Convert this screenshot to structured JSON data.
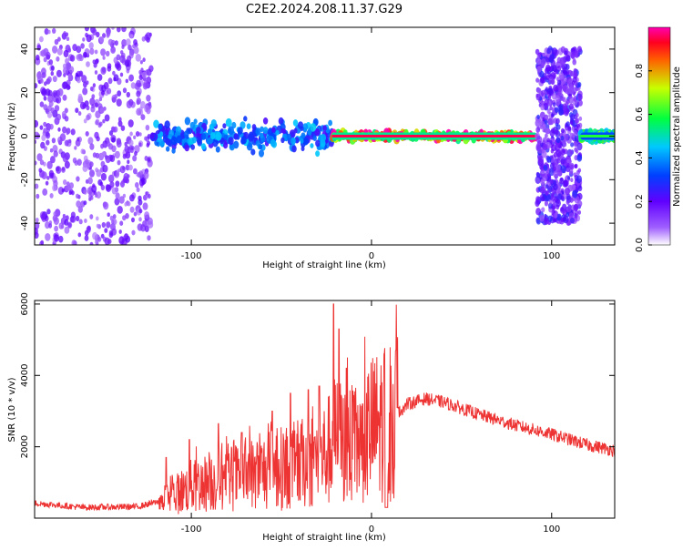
{
  "title": "C2E2.2024.208.11.37.G29",
  "chart_data": [
    {
      "type": "heatmap",
      "xlabel": "Height of straight line (km)",
      "ylabel": "Frequency (Hz)",
      "xlim": [
        -187,
        135
      ],
      "ylim": [
        -50,
        50
      ],
      "xticks": [
        -100,
        0,
        100
      ],
      "yticks": [
        -40,
        -20,
        0,
        20,
        40
      ],
      "colorbar": {
        "label": "Normalized spectral amplitude",
        "range": [
          0,
          1
        ],
        "ticks": [
          0.0,
          0.2,
          0.4,
          0.6,
          0.8
        ]
      },
      "regions": [
        {
          "x": [
            -187,
            -122
          ],
          "freq_spread": 50,
          "amplitude": 0.15,
          "description_tone": "diffuse"
        },
        {
          "x": [
            -122,
            -22
          ],
          "freq_spread": 7,
          "amplitude": 0.4
        },
        {
          "x": [
            -22,
            92
          ],
          "freq_spread": 2,
          "amplitude": 0.95
        },
        {
          "x": [
            92,
            116
          ],
          "freq_spread": 40,
          "amplitude": 0.2
        },
        {
          "x": [
            116,
            135
          ],
          "freq_spread": 2,
          "amplitude": 0.6
        }
      ]
    },
    {
      "type": "line",
      "xlabel": "Height of straight line (km)",
      "ylabel": "SNR (10 * v/v)",
      "xlim": [
        -187,
        135
      ],
      "ylim": [
        0,
        6100
      ],
      "xticks": [
        -100,
        0,
        100
      ],
      "yticks": [
        2000,
        4000,
        6000
      ],
      "color": "#ee3333",
      "trend": [
        [
          -187,
          420
        ],
        [
          -160,
          300
        ],
        [
          -130,
          320
        ],
        [
          -115,
          500
        ],
        [
          -100,
          900
        ],
        [
          -80,
          1100
        ],
        [
          -60,
          1300
        ],
        [
          -40,
          1500
        ],
        [
          -25,
          1800
        ],
        [
          -20,
          2200
        ],
        [
          -10,
          2000
        ],
        [
          0,
          2500
        ],
        [
          10,
          2700
        ],
        [
          20,
          3200
        ],
        [
          30,
          3350
        ],
        [
          40,
          3250
        ],
        [
          60,
          2900
        ],
        [
          80,
          2600
        ],
        [
          100,
          2350
        ],
        [
          120,
          2050
        ],
        [
          135,
          1900
        ]
      ],
      "spikes": [
        [
          -114,
          1700
        ],
        [
          -101,
          2200
        ],
        [
          -85,
          2650
        ],
        [
          -72,
          2400
        ],
        [
          -55,
          3000
        ],
        [
          -45,
          3500
        ],
        [
          -35,
          3600
        ],
        [
          -29,
          3700
        ],
        [
          -21,
          6000
        ],
        [
          -18,
          5300
        ],
        [
          -14,
          4200
        ],
        [
          -5,
          3200
        ],
        [
          7,
          4600
        ],
        [
          15,
          3100
        ]
      ]
    }
  ],
  "colors": {
    "line": "#ee3333",
    "colormap": [
      "#ff00cc",
      "#ff0000",
      "#ffff00",
      "#00ff00",
      "#00ffff",
      "#0000ff",
      "#9900ff",
      "#ffffff"
    ]
  }
}
